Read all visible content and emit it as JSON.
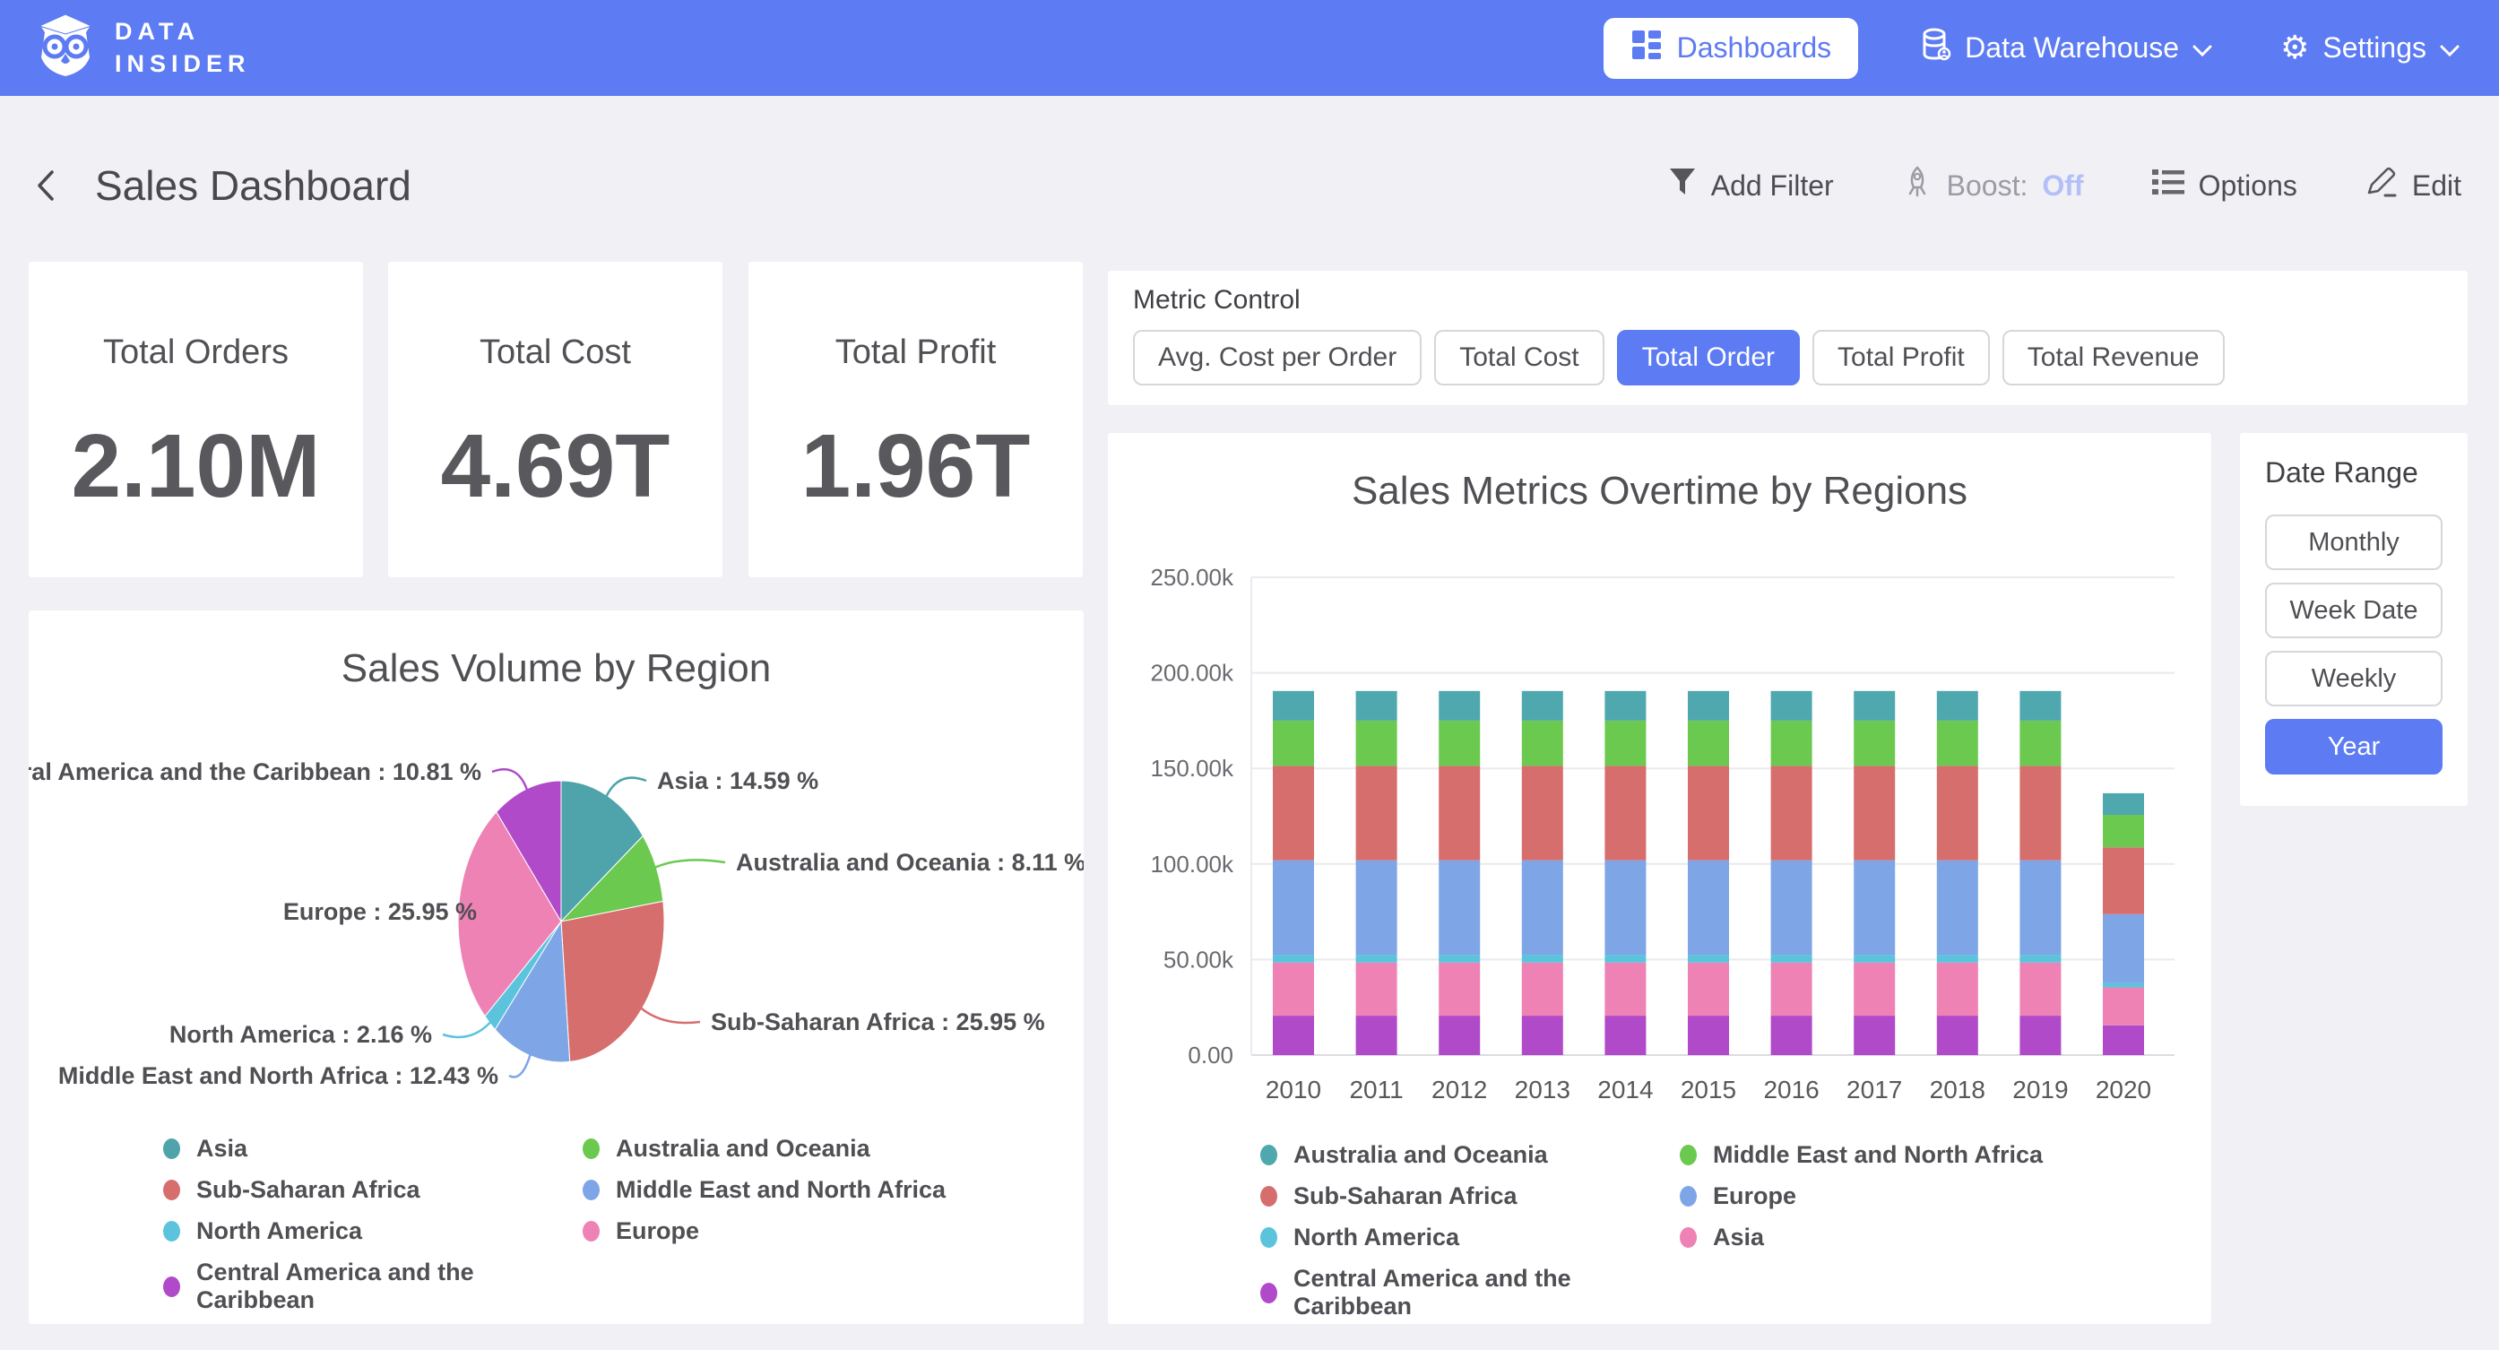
{
  "navbar": {
    "logo_line1": "DATA",
    "logo_line2": "INSIDER",
    "items": [
      {
        "label": "Dashboards",
        "active": true
      },
      {
        "label": "Data Warehouse",
        "has_dropdown": true
      },
      {
        "label": "Settings",
        "has_dropdown": true
      }
    ]
  },
  "header": {
    "title": "Sales Dashboard",
    "actions": [
      {
        "label": "Add Filter"
      },
      {
        "label": "Boost:",
        "suffix": "Off"
      },
      {
        "label": "Options"
      },
      {
        "label": "Edit"
      }
    ]
  },
  "kpis": [
    {
      "title": "Total Orders",
      "value": "2.10M"
    },
    {
      "title": "Total Cost",
      "value": "4.69T"
    },
    {
      "title": "Total Profit",
      "value": "1.96T"
    }
  ],
  "metric_control": {
    "label": "Metric Control",
    "buttons": [
      {
        "label": "Avg. Cost per Order",
        "selected": false
      },
      {
        "label": "Total Cost",
        "selected": false
      },
      {
        "label": "Total Order",
        "selected": true
      },
      {
        "label": "Total Profit",
        "selected": false
      },
      {
        "label": "Total Revenue",
        "selected": false
      }
    ]
  },
  "date_range": {
    "label": "Date Range",
    "buttons": [
      {
        "label": "Monthly",
        "selected": false
      },
      {
        "label": "Week Date",
        "selected": false
      },
      {
        "label": "Weekly",
        "selected": false
      },
      {
        "label": "Year",
        "selected": true
      }
    ]
  },
  "accent_color": "#5d7bf2",
  "chart_data": [
    {
      "type": "pie",
      "title": "Sales Volume by Region",
      "label_format": "{name} : {pct} %",
      "slices": [
        {
          "label": "Asia",
          "pct": 14.59,
          "color": "#4fa3ab"
        },
        {
          "label": "Australia and Oceania",
          "pct": 8.11,
          "color": "#6cc94f"
        },
        {
          "label": "Sub-Saharan Africa",
          "pct": 25.95,
          "color": "#d76e6e"
        },
        {
          "label": "Middle East and North Africa",
          "pct": 12.43,
          "color": "#7ea6e6"
        },
        {
          "label": "North America",
          "pct": 2.16,
          "color": "#5bc4dc"
        },
        {
          "label": "Europe",
          "pct": 25.95,
          "color": "#ee82b4"
        },
        {
          "label": "Central America and the Caribbean",
          "pct": 10.81,
          "color": "#b04ac9"
        }
      ],
      "legend": [
        {
          "label": "Asia",
          "color": "#4fa3ab"
        },
        {
          "label": "Australia and Oceania",
          "color": "#6cc94f"
        },
        {
          "label": "Sub-Saharan Africa",
          "color": "#d76e6e"
        },
        {
          "label": "Middle East and North Africa",
          "color": "#7ea6e6"
        },
        {
          "label": "North America",
          "color": "#5bc4dc"
        },
        {
          "label": "Europe",
          "color": "#ee82b4"
        },
        {
          "label": "Central America and the Caribbean",
          "color": "#b04ac9"
        }
      ]
    },
    {
      "type": "bar",
      "stacked": true,
      "title": "Sales Metrics Overtime by Regions",
      "categories": [
        "2010",
        "2011",
        "2012",
        "2013",
        "2014",
        "2015",
        "2016",
        "2017",
        "2018",
        "2019",
        "2020"
      ],
      "unit": "thousands",
      "y_ticks": [
        "0.00",
        "50.00k",
        "100.00k",
        "150.00k",
        "200.00k",
        "250.00k"
      ],
      "ylim_k": [
        0,
        250
      ],
      "series": [
        {
          "name": "Central America and the Caribbean",
          "color": "#b04ac9",
          "values_k": [
            20.6,
            20.6,
            20.6,
            20.6,
            20.6,
            20.6,
            20.6,
            20.6,
            20.6,
            20.6,
            15.6
          ]
        },
        {
          "name": "Asia",
          "color": "#ee82b4",
          "values_k": [
            27.8,
            27.8,
            27.8,
            27.8,
            27.8,
            27.8,
            27.8,
            27.8,
            27.8,
            27.8,
            19.8
          ]
        },
        {
          "name": "North America",
          "color": "#5bc4dc",
          "values_k": [
            4.1,
            4.1,
            4.1,
            4.1,
            4.1,
            4.1,
            4.1,
            4.1,
            4.1,
            4.1,
            2.3
          ]
        },
        {
          "name": "Europe",
          "color": "#7ea6e6",
          "values_k": [
            49.4,
            49.4,
            49.4,
            49.4,
            49.4,
            49.4,
            49.4,
            49.4,
            49.4,
            49.4,
            36.0
          ]
        },
        {
          "name": "Sub-Saharan Africa",
          "color": "#d76e6e",
          "values_k": [
            49.4,
            49.4,
            49.4,
            49.4,
            49.4,
            49.4,
            49.4,
            49.4,
            49.4,
            49.4,
            35.0
          ]
        },
        {
          "name": "Middle East and North Africa",
          "color": "#6cc94f",
          "values_k": [
            23.7,
            23.7,
            23.7,
            23.7,
            23.7,
            23.7,
            23.7,
            23.7,
            23.7,
            23.7,
            17.0
          ]
        },
        {
          "name": "Australia and Oceania",
          "color": "#4fa8ad",
          "values_k": [
            15.5,
            15.5,
            15.5,
            15.5,
            15.5,
            15.5,
            15.5,
            15.5,
            15.5,
            15.5,
            11.3
          ]
        }
      ],
      "legend": [
        {
          "label": "Australia and Oceania",
          "color": "#4fa8ad"
        },
        {
          "label": "Middle East and North Africa",
          "color": "#6cc94f"
        },
        {
          "label": "Sub-Saharan Africa",
          "color": "#d76e6e"
        },
        {
          "label": "Europe",
          "color": "#7ea6e6"
        },
        {
          "label": "North America",
          "color": "#5bc4dc"
        },
        {
          "label": "Asia",
          "color": "#ee82b4"
        },
        {
          "label": "Central America and the Caribbean",
          "color": "#b04ac9"
        }
      ]
    }
  ]
}
